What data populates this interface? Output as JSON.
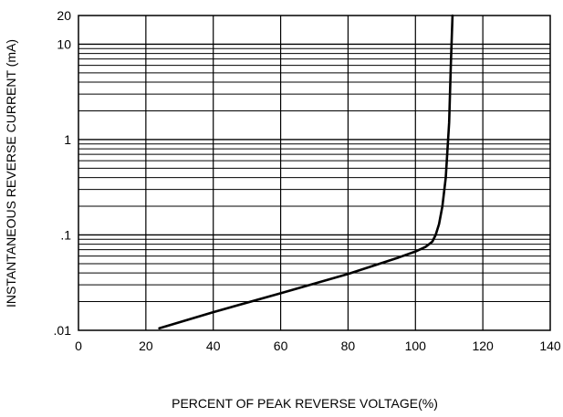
{
  "chart_data": {
    "type": "line",
    "title": "",
    "xlabel": "PERCENT OF PEAK REVERSE VOLTAGE(%)",
    "ylabel": "INSTANTANEOUS REVERSE CURRENT (mA)",
    "x_scale": "linear",
    "y_scale": "log",
    "xlim": [
      0,
      140
    ],
    "ylim": [
      0.01,
      20
    ],
    "x_ticks": [
      0,
      20,
      40,
      60,
      80,
      100,
      120,
      140
    ],
    "x_tick_labels": [
      "0",
      "20",
      "40",
      "60",
      "80",
      "100",
      "120",
      "140"
    ],
    "y_ticks": [
      0.01,
      0.1,
      1,
      10,
      20
    ],
    "y_tick_labels": [
      ".01",
      ".1",
      "1",
      "10",
      "20"
    ],
    "grid": true,
    "legend": "none",
    "line_color": "#000000",
    "series": [
      {
        "x": [
          24,
          40,
          60,
          80,
          95,
          100,
          103,
          105,
          106,
          107,
          108,
          109,
          110,
          110.5,
          111
        ],
        "y": [
          0.0105,
          0.0155,
          0.0245,
          0.039,
          0.058,
          0.067,
          0.075,
          0.085,
          0.1,
          0.13,
          0.2,
          0.4,
          1.5,
          6,
          20
        ]
      }
    ]
  }
}
